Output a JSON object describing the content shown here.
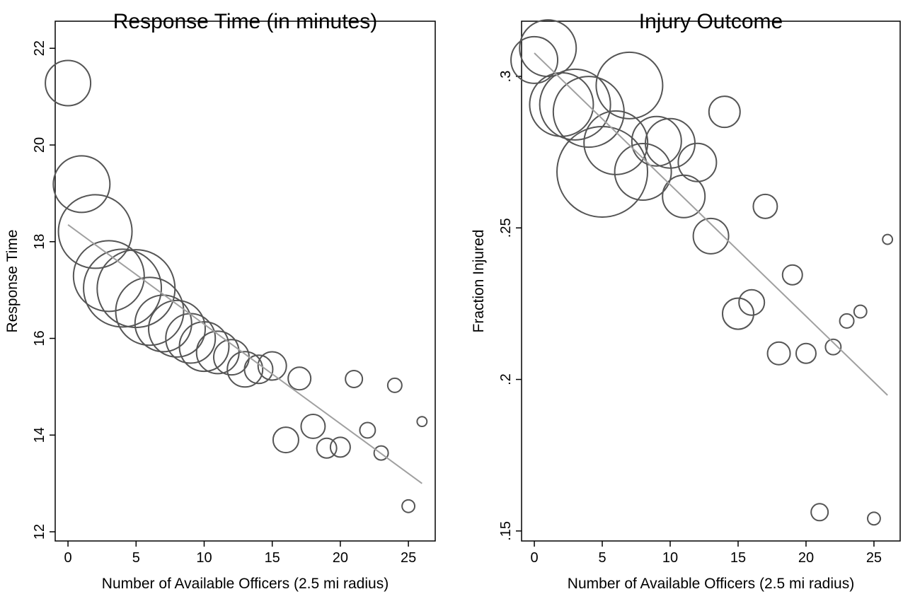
{
  "chart_data": [
    {
      "type": "scatter",
      "title": "Response Time (in minutes)",
      "xlabel": "Number of Available Officers (2.5 mi radius)",
      "ylabel": "Response Time",
      "x": [
        0,
        1,
        2,
        3,
        4,
        5,
        6,
        7,
        8,
        9,
        10,
        11,
        12,
        13,
        14,
        15,
        16,
        17,
        18,
        19,
        20,
        21,
        22,
        23,
        24,
        25,
        26
      ],
      "values": [
        21.28,
        19.19,
        18.21,
        17.29,
        17.04,
        17.03,
        16.56,
        16.31,
        16.2,
        16.0,
        15.83,
        15.71,
        15.61,
        15.36,
        15.36,
        15.43,
        13.9,
        15.17,
        14.18,
        13.73,
        13.75,
        15.16,
        14.1,
        13.63,
        15.03,
        12.53,
        14.28
      ],
      "sizes": [
        256,
        400,
        676,
        625,
        756,
        756,
        576,
        400,
        400,
        306,
        306,
        225,
        156,
        156,
        100,
        100,
        81,
        64,
        72,
        49,
        49,
        36,
        30,
        25,
        25,
        20,
        12
      ],
      "fit_x": [
        0,
        26
      ],
      "fit_values": [
        18.35,
        13.0
      ],
      "color": "#555555",
      "fit_color": "#a0a0a0",
      "xlim": [
        -0.94,
        26.97
      ],
      "ylim": [
        11.81,
        22.56
      ],
      "xticks": [
        0,
        5,
        10,
        15,
        20,
        25
      ],
      "yticks": [
        12,
        14,
        16,
        18,
        20,
        22
      ]
    },
    {
      "type": "scatter",
      "title": "Injury Outcome",
      "xlabel": "Number of Available Officers (2.5 mi radius)",
      "ylabel": "Fraction Injured",
      "x": [
        0,
        1,
        2,
        3,
        4,
        5,
        6,
        7,
        8,
        9,
        10,
        11,
        12,
        13,
        14,
        15,
        16,
        17,
        18,
        19,
        20,
        21,
        22,
        23,
        24,
        25,
        26
      ],
      "values": [
        0.3054,
        0.3093,
        0.2907,
        0.2907,
        0.2883,
        0.2685,
        0.2781,
        0.297,
        0.2685,
        0.2786,
        0.2779,
        0.2604,
        0.2716,
        0.2473,
        0.2883,
        0.2217,
        0.2254,
        0.2571,
        0.2086,
        0.2345,
        0.2086,
        0.1562,
        0.2107,
        0.2193,
        0.2224,
        0.1541,
        0.2462
      ],
      "sizes": [
        272,
        400,
        506,
        625,
        625,
        1024,
        506,
        552,
        400,
        306,
        306,
        225,
        182,
        156,
        121,
        121,
        81,
        72,
        64,
        49,
        49,
        36,
        30,
        25,
        20,
        20,
        12
      ],
      "fit_x": [
        0,
        26
      ],
      "fit_values": [
        0.3077,
        0.1948
      ],
      "color": "#555555",
      "fit_color": "#a0a0a0",
      "xlim": [
        -0.94,
        26.93
      ],
      "ylim": [
        0.1467,
        0.3182
      ],
      "xticks": [
        0,
        5,
        10,
        15,
        20,
        25
      ],
      "yticks": [
        {
          "value": 0.15,
          "label": ".15"
        },
        {
          "value": 0.2,
          "label": ".2"
        },
        {
          "value": 0.25,
          "label": ".25"
        },
        {
          "value": 0.3,
          "label": ".3"
        }
      ]
    }
  ]
}
